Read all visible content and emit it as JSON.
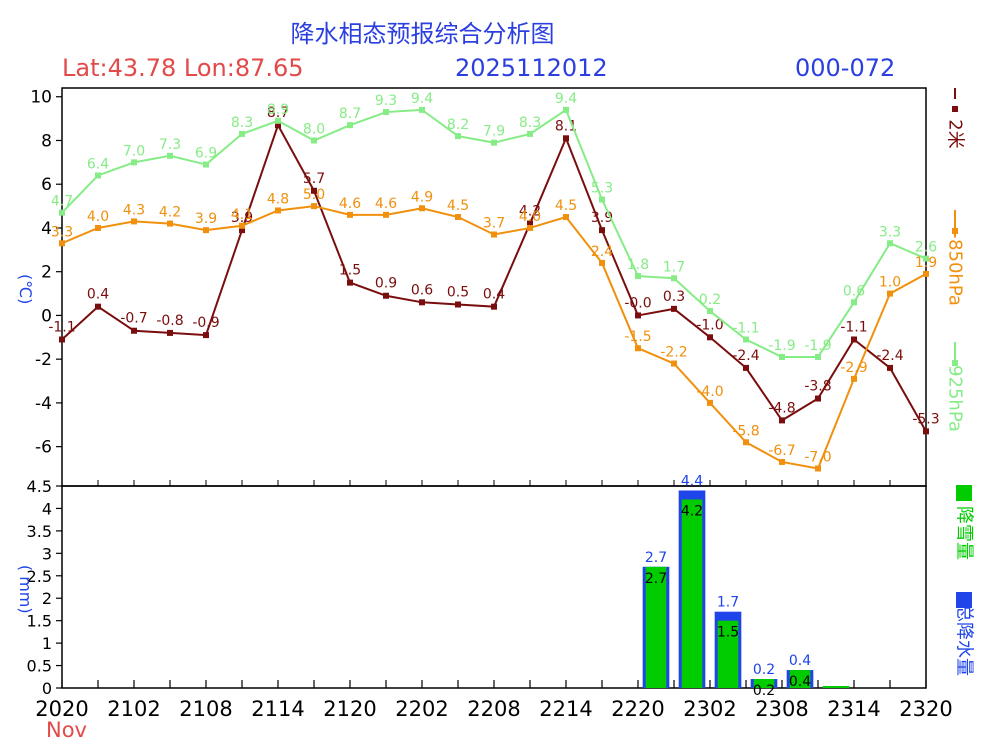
{
  "header": {
    "title": "降水相态预报综合分析图",
    "latlon": "Lat:43.78  Lon:87.65",
    "date": "2025112012",
    "range": "000-072"
  },
  "month_label": "Nov",
  "colors": {
    "t2m": "#7a0d0d",
    "t850": "#f0900c",
    "t925": "#86ec86",
    "snow": "#00cc00",
    "total": "#1f44ea",
    "axis_label": "#1f44ea"
  },
  "chart_data": [
    {
      "type": "line",
      "ylabel": "(℃)",
      "ylim": [
        -7.8,
        10.4
      ],
      "yticks": [
        -6,
        -4,
        -2,
        0,
        2,
        4,
        6,
        8,
        10
      ],
      "x_range": [
        0,
        24
      ],
      "series": [
        {
          "name": "2米",
          "key": "t2m",
          "labels": [
            "-1.1",
            "0.4",
            "-0.7",
            "-0.8",
            "-0.9",
            "3.9",
            "8.7",
            "5.7",
            "1.5",
            "0.9",
            "0.6",
            "0.5",
            "0.4",
            "4.2",
            "8.1",
            "3.9",
            "-0.0",
            "0.3",
            "-1.0",
            "-2.4",
            "-4.8",
            "-3.8",
            "-1.1",
            "-2.4",
            "-5.3"
          ]
        },
        {
          "name": "850hPa",
          "key": "t850",
          "labels": [
            "3.3",
            "4.0",
            "4.3",
            "4.2",
            "3.9",
            "4.1",
            "4.8",
            "5.0",
            "4.6",
            "4.6",
            "4.9",
            "4.5",
            "3.7",
            "4.0",
            "4.5",
            "2.4",
            "-1.5",
            "-2.2",
            "-4.0",
            "-5.8",
            "-6.7",
            "-7.0",
            "-2.9",
            "1.0",
            "1.9"
          ]
        },
        {
          "name": "925hPa",
          "key": "t925",
          "labels": [
            "4.7",
            "6.4",
            "7.0",
            "7.3",
            "6.9",
            "8.3",
            "8.9",
            "8.0",
            "8.7",
            "9.3",
            "9.4",
            "8.2",
            "7.9",
            "8.3",
            "9.4",
            "5.3",
            "1.8",
            "1.7",
            "0.2",
            "-1.1",
            "-1.9",
            "-1.9",
            "0.6",
            "3.3",
            "2.6"
          ]
        }
      ]
    },
    {
      "type": "bar",
      "ylabel": "( mm)",
      "ylim": [
        0,
        4.5
      ],
      "yticks": [
        "0",
        "0.5",
        "1",
        "1.5",
        "2",
        "2.5",
        "3",
        "3.5",
        "4",
        "4.5"
      ],
      "xticks": [
        "2020",
        "2102",
        "2108",
        "2114",
        "2120",
        "2202",
        "2208",
        "2214",
        "2220",
        "2302",
        "2308",
        "2314",
        "2320"
      ],
      "bar_positions": [
        16,
        17,
        18,
        19,
        20,
        21
      ],
      "series": [
        {
          "name": "总降水量",
          "key": "total",
          "labels": [
            "2.7",
            "4.4",
            "1.7",
            "0.2",
            "0.4",
            ""
          ]
        },
        {
          "name": "降雪量",
          "key": "snow",
          "labels": [
            "2.7",
            "4.2",
            "1.5",
            "0.2",
            "0.4",
            ""
          ]
        }
      ]
    }
  ]
}
